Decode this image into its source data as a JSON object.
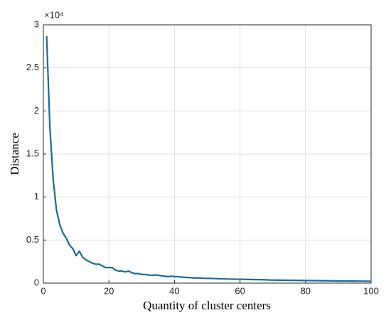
{
  "chart_data": {
    "type": "line",
    "x_label": "Quantity of cluster centers",
    "y_label": "Distance",
    "y_multiplier": "×10⁴",
    "x": [
      1,
      2,
      3,
      4,
      5,
      6,
      7,
      8,
      9,
      10,
      11,
      12,
      13,
      14,
      15,
      16,
      17,
      18,
      19,
      20,
      21,
      22,
      23,
      24,
      25,
      26,
      27,
      28,
      29,
      30,
      31,
      32,
      33,
      34,
      35,
      36,
      37,
      38,
      39,
      40,
      41,
      42,
      43,
      44,
      45,
      46,
      47,
      48,
      49,
      50,
      51,
      52,
      53,
      54,
      55,
      56,
      57,
      58,
      59,
      60,
      61,
      62,
      63,
      64,
      65,
      66,
      67,
      68,
      69,
      70,
      71,
      72,
      73,
      74,
      75,
      76,
      77,
      78,
      79,
      80,
      81,
      82,
      83,
      84,
      85,
      86,
      87,
      88,
      89,
      90,
      91,
      92,
      93,
      94,
      95,
      96,
      97,
      98,
      99,
      100
    ],
    "series": [
      {
        "color": "#1b6a9a",
        "values": [
          2.87,
          1.8,
          1.2,
          0.85,
          0.68,
          0.58,
          0.52,
          0.44,
          0.4,
          0.32,
          0.37,
          0.3,
          0.27,
          0.25,
          0.23,
          0.22,
          0.22,
          0.2,
          0.18,
          0.18,
          0.18,
          0.15,
          0.14,
          0.14,
          0.13,
          0.14,
          0.12,
          0.11,
          0.11,
          0.1,
          0.1,
          0.095,
          0.09,
          0.095,
          0.09,
          0.085,
          0.08,
          0.075,
          0.08,
          0.075,
          0.075,
          0.07,
          0.068,
          0.065,
          0.063,
          0.06,
          0.06,
          0.058,
          0.056,
          0.055,
          0.055,
          0.053,
          0.052,
          0.05,
          0.05,
          0.048,
          0.047,
          0.046,
          0.045,
          0.045,
          0.044,
          0.043,
          0.042,
          0.041,
          0.04,
          0.04,
          0.039,
          0.038,
          0.036,
          0.035,
          0.035,
          0.034,
          0.034,
          0.033,
          0.033,
          0.032,
          0.032,
          0.031,
          0.031,
          0.03,
          0.03,
          0.029,
          0.029,
          0.028,
          0.028,
          0.027,
          0.027,
          0.026,
          0.026,
          0.025,
          0.025,
          0.025,
          0.024,
          0.024,
          0.024,
          0.023,
          0.023,
          0.023,
          0.022,
          0.022
        ]
      }
    ],
    "xlim": [
      0,
      100
    ],
    "xticks": [
      0,
      20,
      40,
      60,
      80,
      100
    ],
    "ylim": [
      0,
      3
    ],
    "yticks": [
      0,
      0.5,
      1,
      1.5,
      2,
      2.5,
      3
    ],
    "grid": true
  }
}
